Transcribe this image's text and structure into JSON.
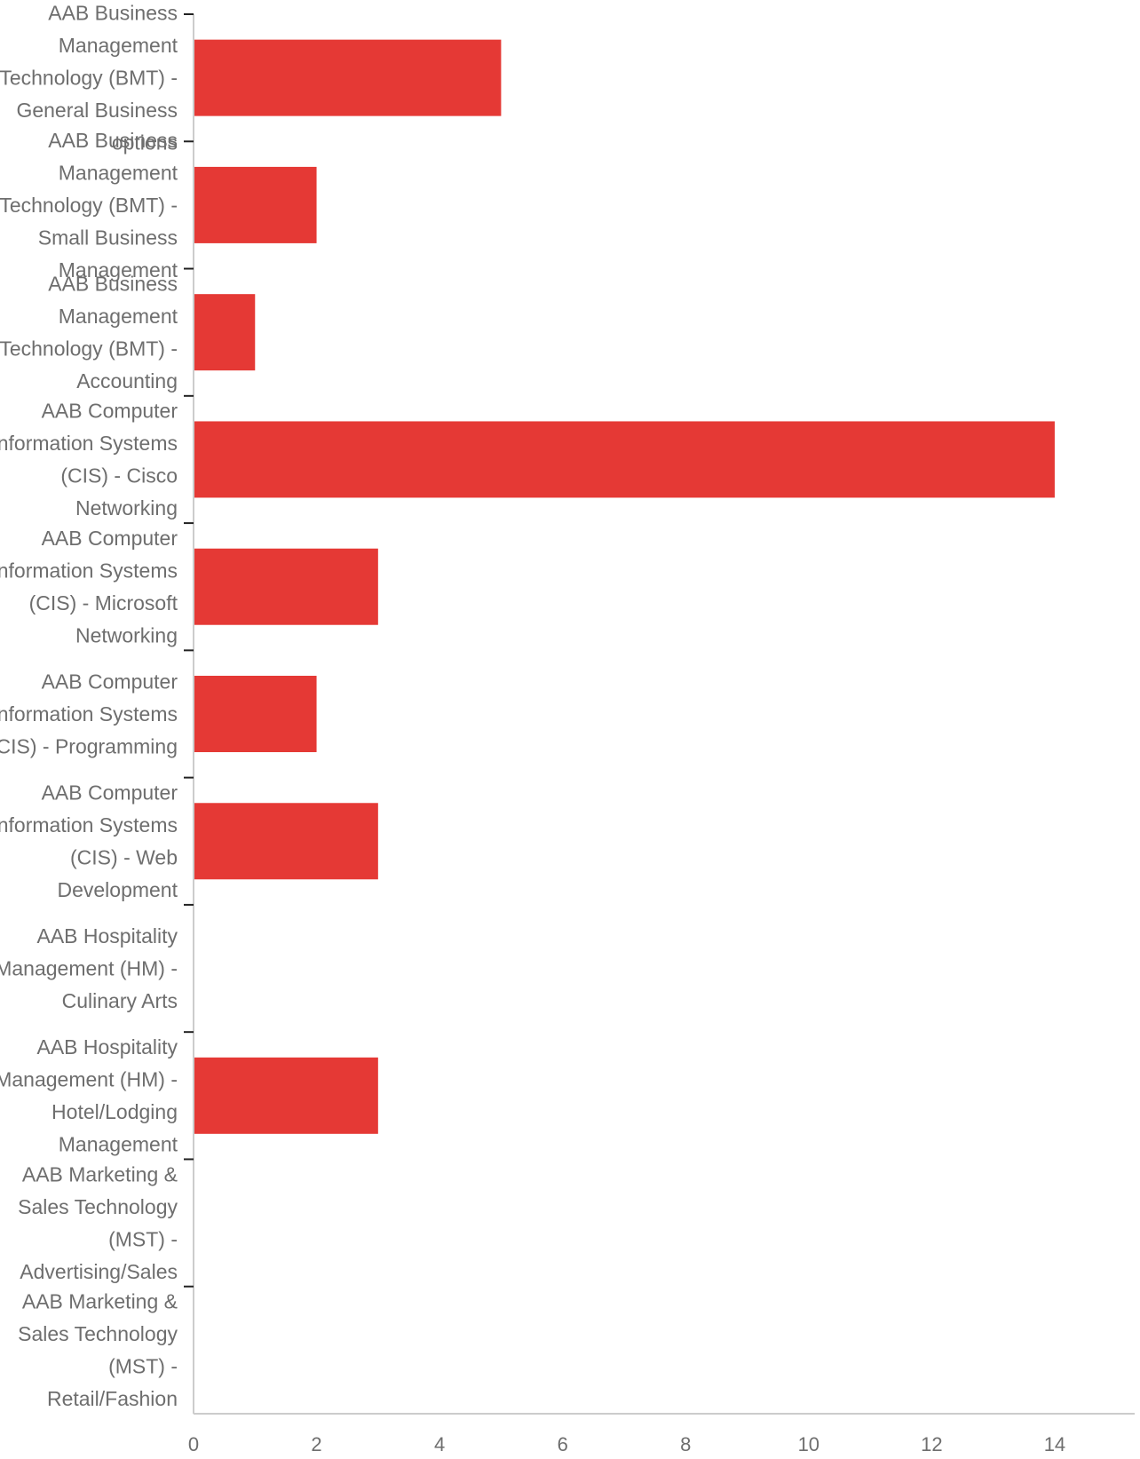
{
  "chart_data": {
    "type": "bar",
    "orientation": "horizontal",
    "title": "",
    "xlabel": "",
    "ylabel": "",
    "categories": [
      "AAB Business Management Technology (BMT) - General Business options",
      "AAB Business Management Technology (BMT) - Small Business Management",
      "AAB Business Management Technology (BMT) - Accounting",
      "AAB Computer Information Systems (CIS) - Cisco Networking",
      "AAB Computer Information Systems (CIS) - Microsoft Networking",
      "AAB Computer Information Systems (CIS) - Programming",
      "AAB Computer Information Systems (CIS) - Web Development",
      "AAB Hospitality Management (HM) - Culinary Arts",
      "AAB Hospitality Management (HM) - Hotel/Lodging Management",
      "AAB Marketing & Sales Technology (MST) - Advertising/Sales",
      "AAB Marketing & Sales Technology (MST) - Retail/Fashion"
    ],
    "category_lines": [
      [
        "AAB Business",
        "Management",
        "Technology (BMT) -",
        "General Business",
        "options"
      ],
      [
        "AAB Business",
        "Management",
        "Technology (BMT) -",
        "Small Business",
        "Management"
      ],
      [
        "AAB Business",
        "Management",
        "Technology (BMT) -",
        "Accounting"
      ],
      [
        "AAB Computer",
        "Information Systems",
        "(CIS) - Cisco",
        "Networking"
      ],
      [
        "AAB Computer",
        "Information Systems",
        "(CIS) - Microsoft",
        "Networking"
      ],
      [
        "AAB Computer",
        "Information Systems",
        "(CIS) - Programming"
      ],
      [
        "AAB Computer",
        "Information Systems",
        "(CIS) - Web",
        "Development"
      ],
      [
        "AAB Hospitality",
        "Management (HM) -",
        "Culinary Arts"
      ],
      [
        "AAB Hospitality",
        "Management (HM) -",
        "Hotel/Lodging",
        "Management"
      ],
      [
        "AAB Marketing &",
        "Sales Technology",
        "(MST) -",
        "Advertising/Sales"
      ],
      [
        "AAB Marketing &",
        "Sales Technology",
        "(MST) -",
        "Retail/Fashion"
      ]
    ],
    "values": [
      5,
      2,
      1,
      14,
      3,
      2,
      3,
      0,
      3,
      0,
      0
    ],
    "xlim": [
      0,
      15.3
    ],
    "xticks": [
      0,
      2,
      4,
      6,
      8,
      10,
      12,
      14
    ],
    "bar_color": "#e53935",
    "axis_color": "#cccccc",
    "tick_color": "#222222",
    "label_color": "#6e6e6e",
    "grid": false,
    "legend": "none"
  }
}
